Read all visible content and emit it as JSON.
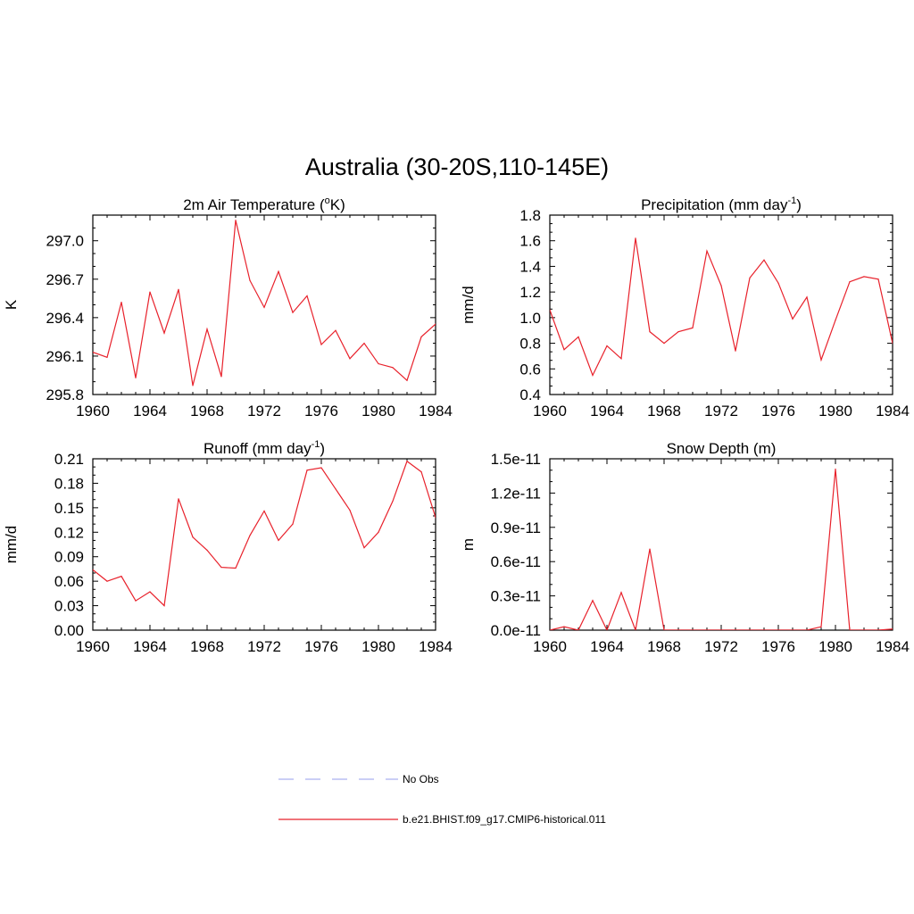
{
  "figure": {
    "title": "Australia (30-20S,110-145E)"
  },
  "style": {
    "model_color": "#e8212b",
    "obs_color": "#aab0f0",
    "axis_color": "#000000"
  },
  "legend": [
    {
      "label": "No Obs",
      "style": "dashed",
      "color": "#aab0f0"
    },
    {
      "label": "b.e21.BHIST.f09_g17.CMIP6-historical.011",
      "style": "solid",
      "color": "#e8212b"
    }
  ],
  "chart_data": [
    {
      "type": "line",
      "title_main": "2m Air Temperature (",
      "title_sup": "o",
      "title_tail": "K)",
      "ylabel": "K",
      "xlim": [
        1960,
        1984
      ],
      "ylim": [
        295.8,
        297.2
      ],
      "xticks": [
        1960,
        1964,
        1968,
        1972,
        1976,
        1980,
        1984
      ],
      "xtick_labels": [
        "1960",
        "1964",
        "1968",
        "1972",
        "1976",
        "1980",
        "1984"
      ],
      "yticks": [
        295.8,
        296.1,
        296.4,
        296.7,
        297.0
      ],
      "ytick_labels": [
        "295.8",
        "296.1",
        "296.4",
        "296.7",
        "297.0"
      ],
      "series": [
        {
          "x": [
            1960,
            1961,
            1962,
            1963,
            1964,
            1965,
            1966,
            1967,
            1968,
            1969,
            1970,
            1971,
            1972,
            1973,
            1974,
            1975,
            1976,
            1977,
            1978,
            1979,
            1980,
            1981,
            1982,
            1983,
            1984
          ],
          "values": [
            296.13,
            296.09,
            296.52,
            295.93,
            296.6,
            296.28,
            296.62,
            295.87,
            296.31,
            295.94,
            297.16,
            296.69,
            296.48,
            296.76,
            296.44,
            296.57,
            296.19,
            296.3,
            296.08,
            296.2,
            296.04,
            296.01,
            295.91,
            296.25,
            296.35
          ]
        }
      ]
    },
    {
      "type": "line",
      "title_main": "Precipitation (mm day",
      "title_sup": "-1",
      "title_tail": ")",
      "ylabel": "mm/d",
      "xlim": [
        1960,
        1984
      ],
      "ylim": [
        0.4,
        1.8
      ],
      "xticks": [
        1960,
        1964,
        1968,
        1972,
        1976,
        1980,
        1984
      ],
      "xtick_labels": [
        "1960",
        "1964",
        "1968",
        "1972",
        "1976",
        "1980",
        "1984"
      ],
      "yticks": [
        0.4,
        0.6,
        0.8,
        1.0,
        1.2,
        1.4,
        1.6,
        1.8
      ],
      "ytick_labels": [
        "0.4",
        "0.6",
        "0.8",
        "1.0",
        "1.2",
        "1.4",
        "1.6",
        "1.8"
      ],
      "series": [
        {
          "x": [
            1960,
            1961,
            1962,
            1963,
            1964,
            1965,
            1966,
            1967,
            1968,
            1969,
            1970,
            1971,
            1972,
            1973,
            1974,
            1975,
            1976,
            1977,
            1978,
            1979,
            1980,
            1981,
            1982,
            1983,
            1984
          ],
          "values": [
            1.06,
            0.75,
            0.85,
            0.55,
            0.78,
            0.68,
            1.62,
            0.89,
            0.8,
            0.89,
            0.92,
            1.52,
            1.25,
            0.74,
            1.31,
            1.45,
            1.27,
            0.99,
            1.16,
            0.67,
            0.98,
            1.28,
            1.32,
            1.3,
            0.8
          ]
        }
      ]
    },
    {
      "type": "line",
      "title_main": "Runoff (mm day",
      "title_sup": "-1",
      "title_tail": ")",
      "ylabel": "mm/d",
      "xlim": [
        1960,
        1984
      ],
      "ylim": [
        0.0,
        0.21
      ],
      "xticks": [
        1960,
        1964,
        1968,
        1972,
        1976,
        1980,
        1984
      ],
      "xtick_labels": [
        "1960",
        "1964",
        "1968",
        "1972",
        "1976",
        "1980",
        "1984"
      ],
      "yticks": [
        0.0,
        0.03,
        0.06,
        0.09,
        0.12,
        0.15,
        0.18,
        0.21
      ],
      "ytick_labels": [
        "0.00",
        "0.03",
        "0.06",
        "0.09",
        "0.12",
        "0.15",
        "0.18",
        "0.21"
      ],
      "series": [
        {
          "x": [
            1960,
            1961,
            1962,
            1963,
            1964,
            1965,
            1966,
            1967,
            1968,
            1969,
            1970,
            1971,
            1972,
            1973,
            1974,
            1975,
            1976,
            1977,
            1978,
            1979,
            1980,
            1981,
            1982,
            1983,
            1984
          ],
          "values": [
            0.074,
            0.06,
            0.066,
            0.036,
            0.047,
            0.03,
            0.161,
            0.114,
            0.098,
            0.077,
            0.076,
            0.116,
            0.146,
            0.11,
            0.13,
            0.196,
            0.199,
            0.173,
            0.147,
            0.101,
            0.12,
            0.158,
            0.207,
            0.194,
            0.138
          ]
        }
      ]
    },
    {
      "type": "line",
      "title_main": "Snow Depth (m)",
      "title_sup": "",
      "title_tail": "",
      "ylabel": "m",
      "xlim": [
        1960,
        1984
      ],
      "ylim": [
        0.0,
        1.5e-11
      ],
      "xticks": [
        1960,
        1964,
        1968,
        1972,
        1976,
        1980,
        1984
      ],
      "xtick_labels": [
        "1960",
        "1964",
        "1968",
        "1972",
        "1976",
        "1980",
        "1984"
      ],
      "yticks": [
        0.0,
        3e-12,
        6e-12,
        9e-12,
        1.2e-11,
        1.5e-11
      ],
      "ytick_labels": [
        "0.0e-11",
        "0.3e-11",
        "0.6e-11",
        "0.9e-11",
        "1.2e-11",
        "1.5e-11"
      ],
      "series": [
        {
          "x": [
            1960,
            1961,
            1962,
            1963,
            1964,
            1965,
            1966,
            1967,
            1968,
            1969,
            1970,
            1971,
            1972,
            1973,
            1974,
            1975,
            1976,
            1977,
            1978,
            1979,
            1980,
            1981,
            1982,
            1983,
            1984
          ],
          "values": [
            0.0,
            3e-13,
            0.0,
            2.6e-12,
            0.0,
            3.3e-12,
            0.0,
            7.1e-12,
            0.0,
            0.0,
            0.0,
            0.0,
            0.0,
            0.0,
            0.0,
            0.0,
            0.0,
            0.0,
            0.0,
            3e-13,
            1.41e-11,
            0.0,
            0.0,
            0.0,
            1e-13
          ]
        }
      ]
    }
  ]
}
